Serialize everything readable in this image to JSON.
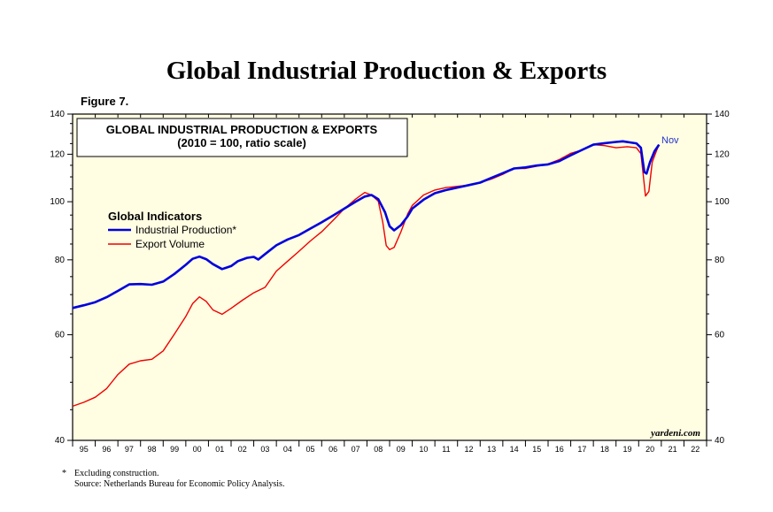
{
  "title": "Global Industrial Production & Exports",
  "figure_label": "Figure 7.",
  "footnotes": {
    "star": "*",
    "note": "Excluding construction.",
    "source": "Source: Netherlands Bureau for Economic Policy Analysis."
  },
  "colors": {
    "plot_background": "#fffde2",
    "industrial_production": "#0000dd",
    "export_volume": "#ee0000",
    "nov_label": "#2233cc"
  },
  "chart_data": {
    "type": "line",
    "box_title_line1": "GLOBAL INDUSTRIAL PRODUCTION & EXPORTS",
    "box_title_line2": "(2010 = 100, ratio scale)",
    "legend_title": "Global Indicators",
    "legend_placement": "upper-left",
    "y_scale": "log",
    "ylim": [
      40,
      140
    ],
    "y_ticks": [
      40,
      60,
      80,
      100,
      120,
      140
    ],
    "xlim": [
      1995.0,
      2023.0
    ],
    "x_tick_labels": [
      "95",
      "96",
      "97",
      "98",
      "99",
      "00",
      "01",
      "02",
      "03",
      "04",
      "05",
      "06",
      "07",
      "08",
      "09",
      "10",
      "11",
      "12",
      "13",
      "14",
      "15",
      "16",
      "17",
      "18",
      "19",
      "20",
      "21",
      "22"
    ],
    "end_label": "Nov",
    "watermark": "yardeni.com",
    "series": [
      {
        "name": "Industrial Production*",
        "color": "#0000dd",
        "points": [
          [
            1995.0,
            66.5
          ],
          [
            1995.5,
            67.2
          ],
          [
            1996.0,
            68.0
          ],
          [
            1996.5,
            69.3
          ],
          [
            1997.0,
            71.0
          ],
          [
            1997.5,
            72.8
          ],
          [
            1998.0,
            72.9
          ],
          [
            1998.5,
            72.7
          ],
          [
            1999.0,
            73.6
          ],
          [
            1999.5,
            75.8
          ],
          [
            2000.0,
            78.5
          ],
          [
            2000.3,
            80.3
          ],
          [
            2000.6,
            81.0
          ],
          [
            2000.9,
            80.2
          ],
          [
            2001.2,
            78.7
          ],
          [
            2001.6,
            77.2
          ],
          [
            2002.0,
            78.1
          ],
          [
            2002.3,
            79.6
          ],
          [
            2002.7,
            80.6
          ],
          [
            2003.0,
            80.9
          ],
          [
            2003.2,
            80.1
          ],
          [
            2003.5,
            81.8
          ],
          [
            2004.0,
            84.6
          ],
          [
            2004.5,
            86.5
          ],
          [
            2005.0,
            88.0
          ],
          [
            2005.5,
            90.2
          ],
          [
            2006.0,
            92.4
          ],
          [
            2006.5,
            94.8
          ],
          [
            2007.0,
            97.4
          ],
          [
            2007.5,
            100.0
          ],
          [
            2007.9,
            102.0
          ],
          [
            2008.2,
            102.6
          ],
          [
            2008.5,
            101.0
          ],
          [
            2008.8,
            96.0
          ],
          [
            2009.0,
            91.0
          ],
          [
            2009.2,
            89.6
          ],
          [
            2009.5,
            91.4
          ],
          [
            2009.8,
            94.6
          ],
          [
            2010.0,
            97.4
          ],
          [
            2010.5,
            100.8
          ],
          [
            2011.0,
            103.3
          ],
          [
            2011.5,
            104.6
          ],
          [
            2012.0,
            105.6
          ],
          [
            2012.5,
            106.6
          ],
          [
            2013.0,
            107.6
          ],
          [
            2013.5,
            109.6
          ],
          [
            2014.0,
            111.6
          ],
          [
            2014.5,
            113.6
          ],
          [
            2015.0,
            114.1
          ],
          [
            2015.5,
            114.9
          ],
          [
            2016.0,
            115.4
          ],
          [
            2016.5,
            116.9
          ],
          [
            2017.0,
            119.5
          ],
          [
            2017.5,
            122.0
          ],
          [
            2018.0,
            124.5
          ],
          [
            2018.5,
            125.2
          ],
          [
            2019.0,
            125.8
          ],
          [
            2019.3,
            126.1
          ],
          [
            2019.6,
            125.6
          ],
          [
            2019.9,
            125.1
          ],
          [
            2020.1,
            123.0
          ],
          [
            2020.25,
            112.0
          ],
          [
            2020.35,
            111.4
          ],
          [
            2020.5,
            116.4
          ],
          [
            2020.7,
            121.4
          ],
          [
            2020.9,
            124.5
          ]
        ]
      },
      {
        "name": "Export Volume",
        "color": "#ee0000",
        "points": [
          [
            1995.0,
            45.6
          ],
          [
            1995.5,
            46.3
          ],
          [
            1996.0,
            47.2
          ],
          [
            1996.5,
            48.8
          ],
          [
            1997.0,
            51.5
          ],
          [
            1997.5,
            53.6
          ],
          [
            1998.0,
            54.3
          ],
          [
            1998.5,
            54.6
          ],
          [
            1999.0,
            56.4
          ],
          [
            1999.5,
            60.2
          ],
          [
            2000.0,
            64.4
          ],
          [
            2000.3,
            67.6
          ],
          [
            2000.6,
            69.4
          ],
          [
            2000.9,
            68.2
          ],
          [
            2001.2,
            66.0
          ],
          [
            2001.6,
            64.9
          ],
          [
            2002.0,
            66.4
          ],
          [
            2002.5,
            68.5
          ],
          [
            2003.0,
            70.5
          ],
          [
            2003.5,
            72.0
          ],
          [
            2004.0,
            76.6
          ],
          [
            2004.5,
            79.6
          ],
          [
            2005.0,
            82.7
          ],
          [
            2005.5,
            86.0
          ],
          [
            2006.0,
            89.1
          ],
          [
            2006.5,
            93.1
          ],
          [
            2007.0,
            97.4
          ],
          [
            2007.5,
            101.0
          ],
          [
            2007.9,
            103.6
          ],
          [
            2008.2,
            102.6
          ],
          [
            2008.5,
            100.2
          ],
          [
            2008.7,
            92.4
          ],
          [
            2008.85,
            84.5
          ],
          [
            2009.0,
            83.2
          ],
          [
            2009.2,
            83.9
          ],
          [
            2009.5,
            89.1
          ],
          [
            2009.8,
            95.5
          ],
          [
            2010.0,
            98.6
          ],
          [
            2010.5,
            102.6
          ],
          [
            2011.0,
            104.6
          ],
          [
            2011.5,
            105.6
          ],
          [
            2012.0,
            106.1
          ],
          [
            2012.5,
            106.6
          ],
          [
            2013.0,
            107.6
          ],
          [
            2013.5,
            109.1
          ],
          [
            2014.0,
            111.1
          ],
          [
            2014.5,
            113.6
          ],
          [
            2015.0,
            113.6
          ],
          [
            2015.5,
            114.6
          ],
          [
            2016.0,
            115.6
          ],
          [
            2016.5,
            117.6
          ],
          [
            2017.0,
            120.4
          ],
          [
            2017.5,
            122.0
          ],
          [
            2018.0,
            124.5
          ],
          [
            2018.5,
            124.0
          ],
          [
            2019.0,
            123.0
          ],
          [
            2019.5,
            123.5
          ],
          [
            2019.9,
            123.0
          ],
          [
            2020.1,
            120.3
          ],
          [
            2020.2,
            111.0
          ],
          [
            2020.3,
            102.2
          ],
          [
            2020.45,
            104.0
          ],
          [
            2020.6,
            116.4
          ],
          [
            2020.8,
            121.9
          ],
          [
            2020.9,
            124.5
          ]
        ]
      }
    ]
  }
}
